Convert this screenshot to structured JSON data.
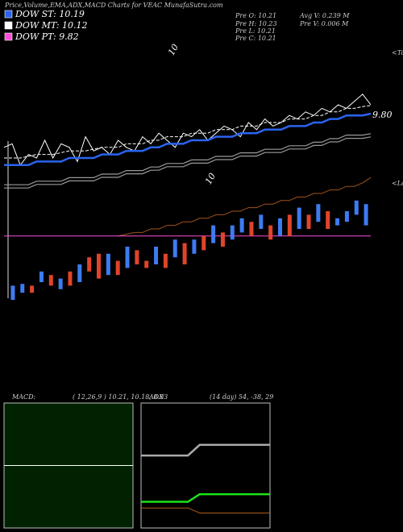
{
  "header": {
    "title": "Price,Volume,EMA,ADX,MACD Charts for VEAC MunafaSutra.com",
    "legend": [
      {
        "label": "DOW ST: 10.19",
        "color": "#2a64f0"
      },
      {
        "label": "DOW MT: 10.12",
        "color": "#ffffff"
      },
      {
        "label": "DOW PT: 9.82",
        "color": "#ff4fd8"
      }
    ],
    "stats": [
      "Pre  O: 10.21",
      "Pre  H: 10.23",
      "Pre  L: 10.21",
      "Pre  C: 10.21",
      "Avg V: 0.239 M",
      "Pre  V: 0.006  M"
    ]
  },
  "chart_data": [
    {
      "type": "candlestick",
      "ylim": [
        0,
        100
      ],
      "up_color": "#3d7bf0",
      "down_color": "#e0442a",
      "annotations": [
        "10",
        "10",
        "<Tops",
        "<Lows",
        "9.80"
      ],
      "open": [
        20,
        22,
        24,
        25,
        27,
        23,
        28,
        25,
        32,
        33,
        27,
        31,
        29,
        34,
        31,
        30,
        33,
        32,
        36,
        33,
        38,
        36,
        39,
        37,
        39,
        42,
        40,
        41,
        38,
        44,
        40,
        44,
        42,
        45,
        41,
        42,
        44,
        41
      ],
      "close": [
        24,
        24.5,
        22,
        28,
        24,
        26,
        24,
        30,
        28,
        26,
        33,
        27,
        35,
        30,
        29,
        35,
        29,
        37,
        30,
        37,
        34,
        41,
        35,
        41,
        43,
        38,
        44,
        37,
        43,
        38,
        46,
        40,
        47,
        40,
        43,
        45,
        48,
        47
      ],
      "series": [
        {
          "color": "#ffffff",
          "style": "thin",
          "values": [
            63,
            64,
            58,
            61,
            60,
            65,
            60,
            64,
            63,
            59,
            66,
            62,
            63,
            61,
            65,
            63,
            62,
            66,
            64,
            67,
            65,
            63,
            67,
            66,
            68,
            65,
            67,
            69,
            68,
            66,
            70,
            68,
            71,
            69,
            70,
            72,
            71,
            73,
            72,
            74,
            73,
            75,
            74,
            76,
            78,
            75
          ]
        },
        {
          "color": "#2a64f0",
          "style": "thick",
          "values": [
            58,
            58,
            58,
            58,
            59,
            59,
            59,
            59,
            60,
            60,
            60,
            60,
            61,
            61,
            61,
            62,
            62,
            62,
            63,
            63,
            64,
            64,
            64,
            65,
            65,
            65,
            66,
            66,
            66,
            67,
            67,
            67,
            68,
            68,
            68,
            69,
            69,
            69,
            70,
            70,
            71,
            71,
            72,
            72,
            72,
            72.5
          ]
        },
        {
          "color": "#ffffff",
          "style": "dashed",
          "values": [
            60,
            60,
            60,
            60.5,
            61,
            61,
            61,
            61.5,
            62,
            62,
            62,
            62.5,
            63,
            63,
            63,
            64,
            64,
            64,
            65,
            65,
            66,
            66,
            66,
            67,
            67,
            67,
            68,
            68,
            68,
            69,
            69,
            69,
            70,
            70,
            70,
            71,
            71,
            71,
            72,
            72,
            73,
            73,
            74,
            74,
            74.5,
            74.8
          ]
        },
        {
          "color": "#9a9a9a",
          "style": "double",
          "values": [
            52,
            52,
            52,
            52,
            53,
            53,
            53,
            53,
            54,
            54,
            54,
            54,
            55,
            55,
            55,
            56,
            56,
            56,
            57,
            57,
            58,
            58,
            58,
            59,
            59,
            59,
            60,
            60,
            60,
            61,
            61,
            61,
            62,
            62,
            62,
            63,
            63,
            63,
            64,
            64,
            65,
            65,
            66,
            66,
            66,
            66.4
          ]
        },
        {
          "color": "#a0521c",
          "style": "thin",
          "values": [
            null,
            null,
            null,
            null,
            null,
            null,
            null,
            null,
            null,
            null,
            null,
            null,
            null,
            null,
            38,
            38.5,
            39,
            39,
            40,
            40,
            41,
            41,
            42,
            42,
            43,
            43,
            44,
            44,
            45,
            45,
            46,
            46,
            47,
            47,
            48,
            48,
            49,
            49,
            50,
            50,
            51,
            51,
            52,
            52,
            53,
            54.5
          ]
        },
        {
          "color": "#ff4fd8",
          "style": "thin",
          "values": [
            38,
            38,
            38,
            38,
            38,
            38,
            38,
            38,
            38,
            38,
            38,
            38,
            38,
            38,
            38,
            38,
            38,
            38,
            38,
            38,
            38,
            38,
            38,
            38,
            38,
            38,
            38,
            38,
            38,
            38,
            38,
            38,
            38,
            38,
            38,
            38,
            38,
            38,
            38,
            38,
            38,
            38,
            38,
            38,
            38,
            38
          ]
        }
      ]
    },
    {
      "type": "line",
      "title": "MACD:",
      "subtitle": "( 12,26,9 ) 10.21, 10.18, 0.03",
      "ylim": [
        0,
        100
      ],
      "background": "#002200",
      "border": "#bbbbbb",
      "series": [
        {
          "color": "#ffffff",
          "style": "thin",
          "values": [
            50,
            50,
            50,
            50,
            50,
            50,
            50,
            50,
            50,
            50,
            50,
            50
          ]
        }
      ]
    },
    {
      "type": "line",
      "title": "ADX",
      "subtitle": "(14  day) 54,  -38,  29",
      "ylim": [
        0,
        100
      ],
      "background": "#000000",
      "border": "#bbbbbb",
      "series": [
        {
          "color": "#aaaaaa",
          "style": "thick",
          "values": [
            58,
            58,
            58,
            58,
            58,
            66.5,
            66.5,
            66.5,
            66.5,
            66.5,
            66.5,
            66.5
          ]
        },
        {
          "color": "#19e619",
          "style": "thick",
          "values": [
            21,
            21,
            21,
            21,
            21,
            27,
            27,
            27,
            27,
            27,
            27,
            27
          ]
        },
        {
          "color": "#b0601c",
          "style": "thin",
          "values": [
            16,
            16,
            16,
            16,
            16,
            12,
            12,
            12,
            12,
            12,
            12,
            12
          ]
        }
      ]
    }
  ]
}
